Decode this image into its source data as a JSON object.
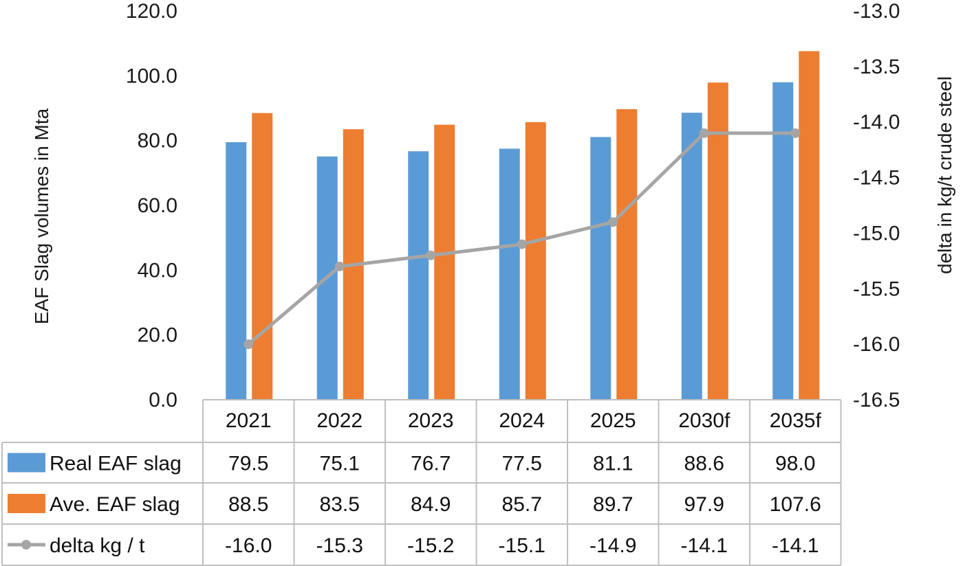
{
  "chart_data": {
    "type": "bar",
    "categories": [
      "2021",
      "2022",
      "2023",
      "2024",
      "2025",
      "2030f",
      "2035f"
    ],
    "series": [
      {
        "name": "Real EAF slag",
        "kind": "bar",
        "axis": "left",
        "color": "#5B9BD5",
        "values": [
          79.5,
          75.1,
          76.7,
          77.5,
          81.1,
          88.6,
          98.0
        ]
      },
      {
        "name": "Ave. EAF slag",
        "kind": "bar",
        "axis": "left",
        "color": "#ED7D31",
        "values": [
          88.5,
          83.5,
          84.9,
          85.7,
          89.7,
          97.9,
          107.6
        ]
      },
      {
        "name": "delta kg / t",
        "kind": "line",
        "axis": "right",
        "color": "#A5A5A5",
        "values": [
          -16.0,
          -15.3,
          -15.2,
          -15.1,
          -14.9,
          -14.1,
          -14.1
        ]
      }
    ],
    "ylabel": "EAF Slag volumes in Mta",
    "y2label": "delta in kg/t crude steel",
    "ylim": [
      0,
      120
    ],
    "y2lim": [
      -16.5,
      -13.0
    ],
    "yticks": [
      "0.0",
      "20.0",
      "40.0",
      "60.0",
      "80.0",
      "100.0",
      "120.0"
    ],
    "y2ticks": [
      "-16.5",
      "-16.0",
      "-15.5",
      "-15.0",
      "-14.5",
      "-14.0",
      "-13.5",
      "-13.0"
    ],
    "data_table": {
      "rows": [
        {
          "label": "Real EAF slag",
          "cells": [
            "79.5",
            "75.1",
            "76.7",
            "77.5",
            "81.1",
            "88.6",
            "98.0"
          ]
        },
        {
          "label": "Ave. EAF slag",
          "cells": [
            "88.5",
            "83.5",
            "84.9",
            "85.7",
            "89.7",
            "97.9",
            "107.6"
          ]
        },
        {
          "label": "delta kg / t",
          "cells": [
            "-16.0",
            "-15.3",
            "-15.2",
            "-15.1",
            "-14.9",
            "-14.1",
            "-14.1"
          ]
        }
      ]
    },
    "grid": false,
    "legend": "data table"
  }
}
